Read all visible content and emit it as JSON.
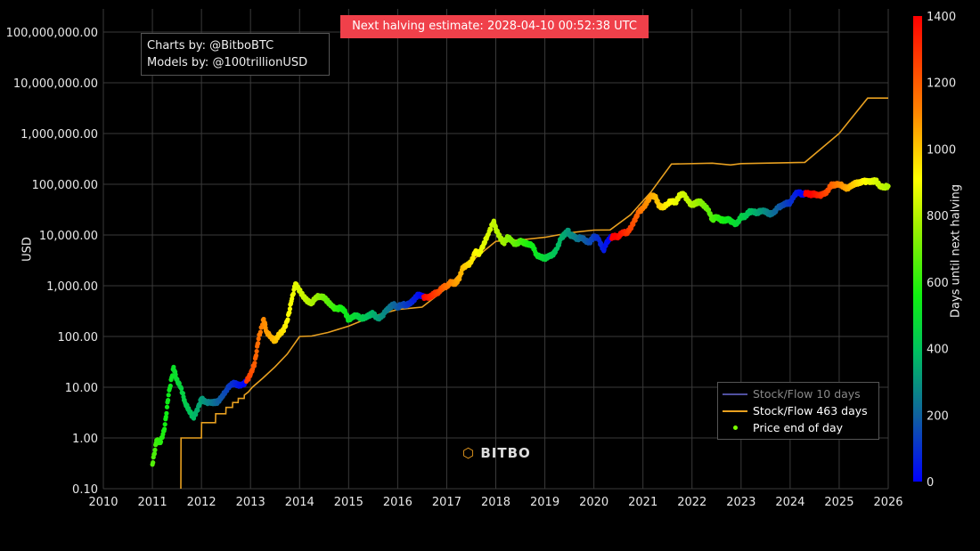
{
  "banner": "Next halving estimate: 2028-04-10 00:52:38 UTC",
  "credits": [
    "Charts by: @BitboBTC",
    "Models by: @100trillionUSD"
  ],
  "watermark": "BITBO",
  "chart_data": {
    "type": "scatter",
    "ylabel": "USD",
    "yscale": "log",
    "ylim": [
      0.1,
      150000000
    ],
    "xlim": [
      "2010-01-01",
      "2026-01-01"
    ],
    "grid": true,
    "x_ticks": [
      "2010",
      "2011",
      "2012",
      "2013",
      "2014",
      "2015",
      "2016",
      "2017",
      "2018",
      "2019",
      "2020",
      "2021",
      "2022",
      "2023",
      "2024",
      "2025",
      "2026"
    ],
    "y_ticks": [
      "0.10",
      "1.00",
      "10.00",
      "100.00",
      "1,000.00",
      "10,000.00",
      "100,000.00",
      "1,000,000.00",
      "10,000,000.00",
      "100,000,000.00"
    ],
    "y_tick_values": [
      0.1,
      1,
      10,
      100,
      1000,
      10000,
      100000,
      1000000,
      10000000,
      100000000
    ],
    "legend_position": "bottom-right",
    "colorbar": {
      "title": "Days until next halving",
      "range": [
        0,
        1400
      ],
      "ticks": [
        "0",
        "200",
        "400",
        "600",
        "800",
        "1000",
        "1200",
        "1400"
      ],
      "colors": [
        "#0000ff",
        "#1060a0",
        "#00c060",
        "#10f010",
        "#a0f000",
        "#ffff00",
        "#ff8000",
        "#ff0000"
      ]
    },
    "series": [
      {
        "name": "Stock/Flow 10 days",
        "kind": "line",
        "color": "#5050a0",
        "hidden": true,
        "points": []
      },
      {
        "name": "Stock/Flow 463 days",
        "kind": "line",
        "color": "#e8a020",
        "points": [
          [
            "2011-08-01",
            0.1
          ],
          [
            "2011-08-02",
            1
          ],
          [
            "2012-01-01",
            1
          ],
          [
            "2012-01-02",
            2
          ],
          [
            "2012-04-15",
            2
          ],
          [
            "2012-04-16",
            3
          ],
          [
            "2012-07-01",
            3
          ],
          [
            "2012-07-02",
            4
          ],
          [
            "2012-08-20",
            4
          ],
          [
            "2012-08-21",
            5
          ],
          [
            "2012-10-01",
            5
          ],
          [
            "2012-10-02",
            6
          ],
          [
            "2012-11-15",
            6
          ],
          [
            "2012-11-16",
            7
          ],
          [
            "2012-12-15",
            8
          ],
          [
            "2013-01-15",
            10
          ],
          [
            "2013-04-01",
            15
          ],
          [
            "2013-07-01",
            25
          ],
          [
            "2013-10-01",
            45
          ],
          [
            "2014-01-01",
            100
          ],
          [
            "2014-04-01",
            102
          ],
          [
            "2014-08-01",
            120
          ],
          [
            "2015-01-01",
            160
          ],
          [
            "2015-07-01",
            250
          ],
          [
            "2016-01-01",
            340
          ],
          [
            "2016-07-01",
            380
          ],
          [
            "2017-01-01",
            900
          ],
          [
            "2017-07-01",
            3000
          ],
          [
            "2018-01-01",
            7500
          ],
          [
            "2018-07-01",
            8000
          ],
          [
            "2019-01-01",
            9000
          ],
          [
            "2019-07-01",
            11000
          ],
          [
            "2020-01-01",
            12500
          ],
          [
            "2020-05-01",
            12600
          ],
          [
            "2020-10-01",
            25000
          ],
          [
            "2021-03-01",
            70000
          ],
          [
            "2021-08-01",
            250000
          ],
          [
            "2022-06-01",
            260000
          ],
          [
            "2022-10-15",
            240000
          ],
          [
            "2023-01-01",
            255000
          ],
          [
            "2024-04-20",
            270000
          ],
          [
            "2025-01-01",
            1000000
          ],
          [
            "2025-08-01",
            5000000
          ],
          [
            "2026-01-01",
            5000000
          ]
        ]
      },
      {
        "name": "Price end of day",
        "kind": "markers",
        "color": "#7cff00",
        "points": [
          [
            "2011-01-01",
            0.3
          ],
          [
            "2011-02-01",
            0.9
          ],
          [
            "2011-03-01",
            0.8
          ],
          [
            "2011-04-01",
            1.5
          ],
          [
            "2011-05-01",
            7
          ],
          [
            "2011-06-08",
            25
          ],
          [
            "2011-07-01",
            14
          ],
          [
            "2011-08-01",
            10
          ],
          [
            "2011-09-01",
            5
          ],
          [
            "2011-10-01",
            3.5
          ],
          [
            "2011-11-01",
            2.5
          ],
          [
            "2011-12-01",
            3.5
          ],
          [
            "2012-01-01",
            6
          ],
          [
            "2012-02-01",
            5
          ],
          [
            "2012-03-01",
            5
          ],
          [
            "2012-04-01",
            5
          ],
          [
            "2012-05-01",
            5.1
          ],
          [
            "2012-06-01",
            6.5
          ],
          [
            "2012-07-01",
            8.5
          ],
          [
            "2012-08-01",
            11
          ],
          [
            "2012-09-01",
            12
          ],
          [
            "2012-10-01",
            11
          ],
          [
            "2012-11-01",
            11
          ],
          [
            "2012-12-01",
            13
          ],
          [
            "2013-01-01",
            18
          ],
          [
            "2013-02-01",
            30
          ],
          [
            "2013-03-01",
            90
          ],
          [
            "2013-04-09",
            220
          ],
          [
            "2013-05-01",
            120
          ],
          [
            "2013-06-01",
            100
          ],
          [
            "2013-07-01",
            80
          ],
          [
            "2013-08-01",
            110
          ],
          [
            "2013-09-01",
            130
          ],
          [
            "2013-10-01",
            200
          ],
          [
            "2013-11-01",
            500
          ],
          [
            "2013-12-01",
            1100
          ],
          [
            "2014-01-01",
            800
          ],
          [
            "2014-02-01",
            600
          ],
          [
            "2014-03-01",
            500
          ],
          [
            "2014-04-01",
            450
          ],
          [
            "2014-05-01",
            600
          ],
          [
            "2014-06-01",
            620
          ],
          [
            "2014-07-01",
            590
          ],
          [
            "2014-08-01",
            480
          ],
          [
            "2014-09-01",
            390
          ],
          [
            "2014-10-01",
            340
          ],
          [
            "2014-11-01",
            370
          ],
          [
            "2014-12-01",
            320
          ],
          [
            "2015-01-01",
            210
          ],
          [
            "2015-02-01",
            250
          ],
          [
            "2015-03-01",
            260
          ],
          [
            "2015-04-01",
            230
          ],
          [
            "2015-05-01",
            235
          ],
          [
            "2015-06-01",
            260
          ],
          [
            "2015-07-01",
            285
          ],
          [
            "2015-08-01",
            230
          ],
          [
            "2015-09-01",
            236
          ],
          [
            "2015-10-01",
            310
          ],
          [
            "2015-11-01",
            370
          ],
          [
            "2015-12-01",
            430
          ],
          [
            "2016-01-01",
            370
          ],
          [
            "2016-02-01",
            435
          ],
          [
            "2016-03-01",
            415
          ],
          [
            "2016-04-01",
            450
          ],
          [
            "2016-05-01",
            530
          ],
          [
            "2016-06-01",
            670
          ],
          [
            "2016-07-01",
            620
          ],
          [
            "2016-08-01",
            575
          ],
          [
            "2016-09-01",
            610
          ],
          [
            "2016-10-01",
            700
          ],
          [
            "2016-11-01",
            740
          ],
          [
            "2016-12-01",
            960
          ],
          [
            "2017-01-01",
            970
          ],
          [
            "2017-02-01",
            1190
          ],
          [
            "2017-03-01",
            1080
          ],
          [
            "2017-04-01",
            1350
          ],
          [
            "2017-05-01",
            2300
          ],
          [
            "2017-06-01",
            2500
          ],
          [
            "2017-07-01",
            2870
          ],
          [
            "2017-08-01",
            4700
          ],
          [
            "2017-09-01",
            4300
          ],
          [
            "2017-10-01",
            6400
          ],
          [
            "2017-11-01",
            10000
          ],
          [
            "2017-12-17",
            19000
          ],
          [
            "2018-01-01",
            13000
          ],
          [
            "2018-02-01",
            9000
          ],
          [
            "2018-03-01",
            6900
          ],
          [
            "2018-04-01",
            9200
          ],
          [
            "2018-05-01",
            7500
          ],
          [
            "2018-06-01",
            6400
          ],
          [
            "2018-07-01",
            7700
          ],
          [
            "2018-08-01",
            7000
          ],
          [
            "2018-09-01",
            6600
          ],
          [
            "2018-10-01",
            6300
          ],
          [
            "2018-11-01",
            4000
          ],
          [
            "2018-12-01",
            3700
          ],
          [
            "2019-01-01",
            3450
          ],
          [
            "2019-02-01",
            3850
          ],
          [
            "2019-03-01",
            4100
          ],
          [
            "2019-04-01",
            5300
          ],
          [
            "2019-05-01",
            8600
          ],
          [
            "2019-06-26",
            12500
          ],
          [
            "2019-07-01",
            10100
          ],
          [
            "2019-08-01",
            9600
          ],
          [
            "2019-09-01",
            8300
          ],
          [
            "2019-10-01",
            9200
          ],
          [
            "2019-11-01",
            7600
          ],
          [
            "2019-12-01",
            7200
          ],
          [
            "2020-01-01",
            9350
          ],
          [
            "2020-02-01",
            8600
          ],
          [
            "2020-03-13",
            5000
          ],
          [
            "2020-04-01",
            6800
          ],
          [
            "2020-05-01",
            8800
          ],
          [
            "2020-06-01",
            9450
          ],
          [
            "2020-07-01",
            9140
          ],
          [
            "2020-08-01",
            11650
          ],
          [
            "2020-09-01",
            10800
          ],
          [
            "2020-10-01",
            13800
          ],
          [
            "2020-11-01",
            19700
          ],
          [
            "2020-12-01",
            29000
          ],
          [
            "2021-01-01",
            33000
          ],
          [
            "2021-02-01",
            45000
          ],
          [
            "2021-03-01",
            58800
          ],
          [
            "2021-04-01",
            57700
          ],
          [
            "2021-05-01",
            37300
          ],
          [
            "2021-06-01",
            35000
          ],
          [
            "2021-07-01",
            41500
          ],
          [
            "2021-08-01",
            47100
          ],
          [
            "2021-09-01",
            43800
          ],
          [
            "2021-10-01",
            61300
          ],
          [
            "2021-11-01",
            64000
          ],
          [
            "2021-12-01",
            46300
          ],
          [
            "2022-01-01",
            38500
          ],
          [
            "2022-02-01",
            43200
          ],
          [
            "2022-03-01",
            45500
          ],
          [
            "2022-04-01",
            37700
          ],
          [
            "2022-05-01",
            31800
          ],
          [
            "2022-06-01",
            19800
          ],
          [
            "2022-07-01",
            23300
          ],
          [
            "2022-08-01",
            20000
          ],
          [
            "2022-09-01",
            19400
          ],
          [
            "2022-10-01",
            20500
          ],
          [
            "2022-11-01",
            17200
          ],
          [
            "2022-12-01",
            16500
          ],
          [
            "2023-01-01",
            23100
          ],
          [
            "2023-02-01",
            23100
          ],
          [
            "2023-03-01",
            28500
          ],
          [
            "2023-04-01",
            29200
          ],
          [
            "2023-05-01",
            27200
          ],
          [
            "2023-06-01",
            30500
          ],
          [
            "2023-07-01",
            29200
          ],
          [
            "2023-08-01",
            26000
          ],
          [
            "2023-09-01",
            27000
          ],
          [
            "2023-10-01",
            34500
          ],
          [
            "2023-11-01",
            37700
          ],
          [
            "2023-12-01",
            42300
          ],
          [
            "2024-01-01",
            42600
          ],
          [
            "2024-02-01",
            61200
          ],
          [
            "2024-03-01",
            71300
          ],
          [
            "2024-04-01",
            63000
          ],
          [
            "2024-05-01",
            67500
          ],
          [
            "2024-06-01",
            62700
          ],
          [
            "2024-07-01",
            64600
          ],
          [
            "2024-08-01",
            59000
          ],
          [
            "2024-09-01",
            63300
          ],
          [
            "2024-10-01",
            70200
          ],
          [
            "2024-11-01",
            96400
          ],
          [
            "2024-12-01",
            97000
          ],
          [
            "2025-01-01",
            102400
          ],
          [
            "2025-02-01",
            90000
          ],
          [
            "2025-03-01",
            82500
          ],
          [
            "2025-04-01",
            94200
          ],
          [
            "2025-05-01",
            104600
          ],
          [
            "2025-06-01",
            107100
          ],
          [
            "2025-07-01",
            115700
          ],
          [
            "2025-08-01",
            112000
          ],
          [
            "2025-09-01",
            114000
          ],
          [
            "2025-10-01",
            118000
          ],
          [
            "2025-11-01",
            91000
          ],
          [
            "2025-12-01",
            88000
          ],
          [
            "2026-01-01",
            92000
          ]
        ]
      }
    ]
  }
}
